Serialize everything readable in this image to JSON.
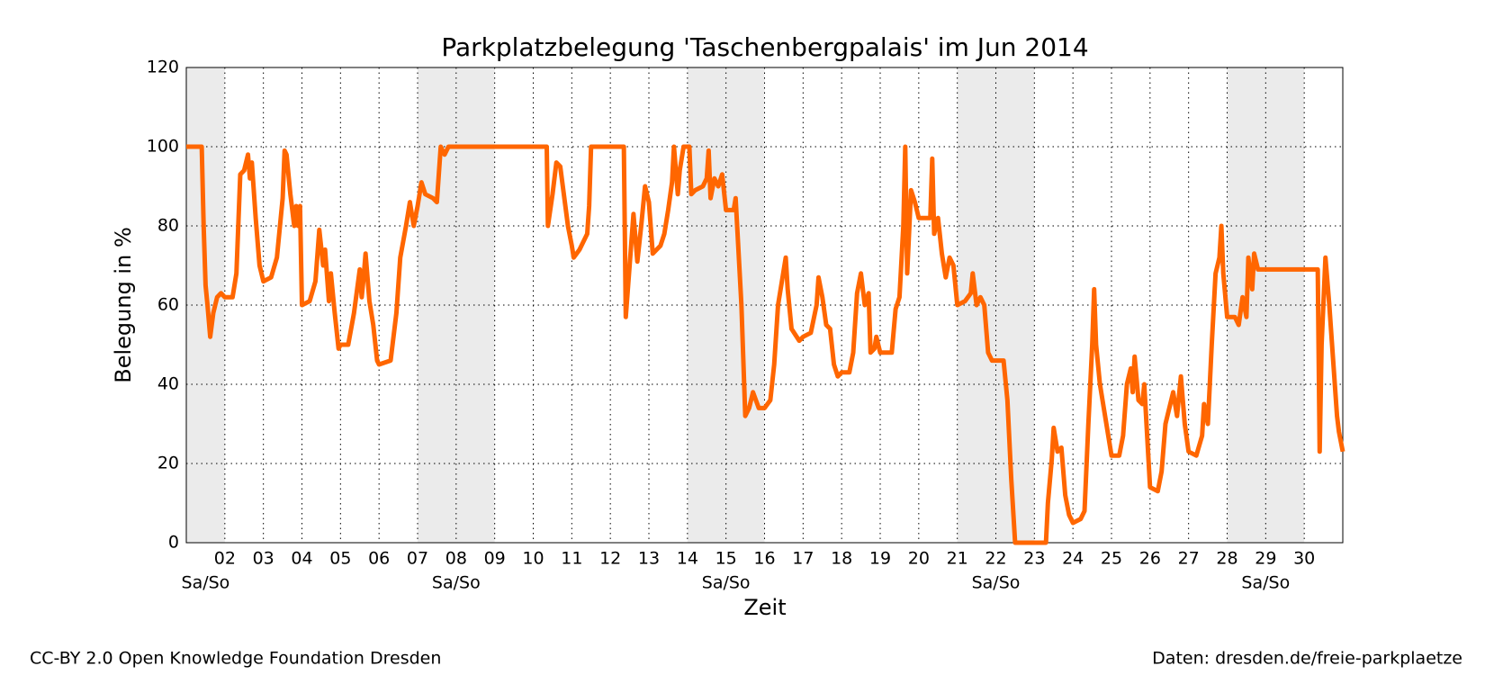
{
  "chart_data": {
    "type": "line",
    "title": "Parkplatzbelegung 'Taschenbergpalais' im Jun 2014",
    "xlabel": "Zeit",
    "ylabel": "Belegung in %",
    "footer_left": "CC-BY 2.0 Open Knowledge Foundation Dresden",
    "footer_right": "Daten: dresden.de/freie-parkplaetze",
    "color": "#ff6600",
    "grid": true,
    "xlim": [
      1,
      31
    ],
    "ylim": [
      0,
      120
    ],
    "yticks": [
      0,
      20,
      40,
      60,
      80,
      100,
      120
    ],
    "xticks": [
      {
        "value": 2,
        "label": "02"
      },
      {
        "value": 3,
        "label": "03"
      },
      {
        "value": 4,
        "label": "04"
      },
      {
        "value": 5,
        "label": "05"
      },
      {
        "value": 6,
        "label": "06"
      },
      {
        "value": 7,
        "label": "07"
      },
      {
        "value": 8,
        "label": "08"
      },
      {
        "value": 9,
        "label": "09"
      },
      10,
      11,
      12,
      13,
      14,
      15,
      16,
      17,
      18,
      19,
      20,
      21,
      22,
      23,
      24,
      25,
      26,
      27,
      28,
      29,
      30
    ],
    "weekends": [
      {
        "label": "Sa/So",
        "range": [
          1,
          2
        ]
      },
      {
        "label": "Sa/So",
        "range": [
          7,
          9
        ]
      },
      {
        "label": "Sa/So",
        "range": [
          14,
          16
        ]
      },
      {
        "label": "Sa/So",
        "range": [
          21,
          23
        ]
      },
      {
        "label": "Sa/So",
        "range": [
          28,
          30
        ]
      }
    ],
    "x": [
      1,
      1.4,
      1.45,
      1.5,
      1.55,
      1.62,
      1.7,
      1.8,
      1.9,
      2,
      2.2,
      2.3,
      2.4,
      2.5,
      2.6,
      2.65,
      2.7,
      2.8,
      2.9,
      3,
      3.2,
      3.35,
      3.5,
      3.55,
      3.6,
      3.7,
      3.8,
      3.85,
      3.9,
      3.95,
      4,
      4.2,
      4.35,
      4.45,
      4.55,
      4.6,
      4.7,
      4.75,
      4.85,
      4.95,
      5,
      5.2,
      5.35,
      5.5,
      5.55,
      5.6,
      5.65,
      5.75,
      5.85,
      5.95,
      6,
      6.3,
      6.45,
      6.55,
      6.7,
      6.8,
      6.9,
      7,
      7.1,
      7.2,
      7.4,
      7.5,
      7.6,
      7.7,
      7.8,
      10.35,
      10.38,
      10.5,
      10.6,
      10.7,
      10.9,
      11,
      11.05,
      11.2,
      11.4,
      11.45,
      11.5,
      12.35,
      12.4,
      12.5,
      12.6,
      12.7,
      12.8,
      12.9,
      13,
      13.1,
      13.3,
      13.4,
      13.5,
      13.6,
      13.65,
      13.75,
      13.8,
      13.9,
      14.05,
      14.1,
      14.2,
      14.4,
      14.5,
      14.55,
      14.6,
      14.7,
      14.8,
      14.9,
      15,
      15.2,
      15.25,
      15.3,
      15.4,
      15.5,
      15.6,
      15.7,
      15.85,
      16,
      16.15,
      16.25,
      16.35,
      16.45,
      16.55,
      16.6,
      16.7,
      16.9,
      17,
      17.2,
      17.35,
      17.4,
      17.5,
      17.6,
      17.7,
      17.8,
      17.9,
      18,
      18.2,
      18.3,
      18.4,
      18.5,
      18.6,
      18.7,
      18.75,
      18.85,
      18.9,
      19,
      19.3,
      19.4,
      19.5,
      19.6,
      19.65,
      19.7,
      19.8,
      19.9,
      20,
      20.3,
      20.35,
      20.4,
      20.5,
      20.6,
      20.7,
      20.8,
      20.9,
      21,
      21.2,
      21.35,
      21.4,
      21.5,
      21.6,
      21.7,
      21.8,
      21.9,
      22.2,
      22.3,
      22.4,
      22.5,
      23.3,
      23.35,
      23.45,
      23.5,
      23.6,
      23.7,
      23.8,
      23.9,
      24,
      24.2,
      24.3,
      24.4,
      24.5,
      24.55,
      24.6,
      24.7,
      24.8,
      24.9,
      25,
      25.2,
      25.3,
      25.4,
      25.5,
      25.55,
      25.6,
      25.7,
      25.8,
      25.85,
      26,
      26.2,
      26.3,
      26.4,
      26.5,
      26.6,
      26.7,
      26.8,
      26.9,
      27,
      27.2,
      27.35,
      27.4,
      27.5,
      27.6,
      27.7,
      27.8,
      27.85,
      27.9,
      28,
      28.2,
      28.3,
      28.4,
      28.5,
      28.55,
      28.65,
      28.7,
      28.8,
      30.35,
      30.4,
      30.45,
      30.55,
      30.65,
      30.75,
      30.85,
      30.9,
      31
    ],
    "values": [
      100,
      100,
      80,
      65,
      60,
      52,
      58,
      62,
      63,
      62,
      62,
      68,
      93,
      94,
      98,
      92,
      96,
      82,
      70,
      66,
      67,
      72,
      87,
      99,
      98,
      88,
      80,
      85,
      80,
      85,
      60,
      61,
      66,
      79,
      70,
      74,
      61,
      68,
      58,
      49,
      50,
      50,
      58,
      69,
      62,
      67,
      73,
      61,
      55,
      46,
      45,
      46,
      58,
      72,
      80,
      86,
      80,
      85,
      91,
      88,
      87,
      86,
      100,
      98,
      100,
      100,
      80,
      88,
      96,
      95,
      80,
      75,
      72,
      74,
      78,
      85,
      100,
      100,
      57,
      70,
      83,
      71,
      80,
      90,
      86,
      73,
      75,
      78,
      84,
      91,
      100,
      88,
      94,
      100,
      100,
      88,
      89,
      90,
      92,
      99,
      87,
      92,
      90,
      93,
      84,
      84,
      87,
      78,
      60,
      32,
      34,
      38,
      34,
      34,
      36,
      45,
      60,
      66,
      72,
      64,
      54,
      51,
      52,
      53,
      60,
      67,
      62,
      55,
      54,
      45,
      42,
      43,
      43,
      48,
      63,
      68,
      60,
      63,
      48,
      49,
      52,
      48,
      48,
      59,
      62,
      80,
      100,
      68,
      89,
      86,
      82,
      82,
      97,
      78,
      82,
      73,
      67,
      72,
      70,
      60,
      61,
      63,
      68,
      60,
      62,
      60,
      48,
      46,
      46,
      36,
      16,
      0,
      0,
      10,
      21,
      29,
      23,
      24,
      12,
      7,
      5,
      6,
      8,
      30,
      50,
      64,
      50,
      40,
      34,
      28,
      22,
      22,
      27,
      40,
      44,
      38,
      47,
      36,
      35,
      40,
      14,
      13,
      18,
      30,
      34,
      38,
      32,
      42,
      30,
      23,
      22,
      27,
      35,
      30,
      50,
      68,
      72,
      80,
      68,
      57,
      57,
      55,
      62,
      57,
      72,
      64,
      73,
      69,
      69,
      23,
      50,
      72,
      60,
      46,
      32,
      28,
      23
    ]
  }
}
